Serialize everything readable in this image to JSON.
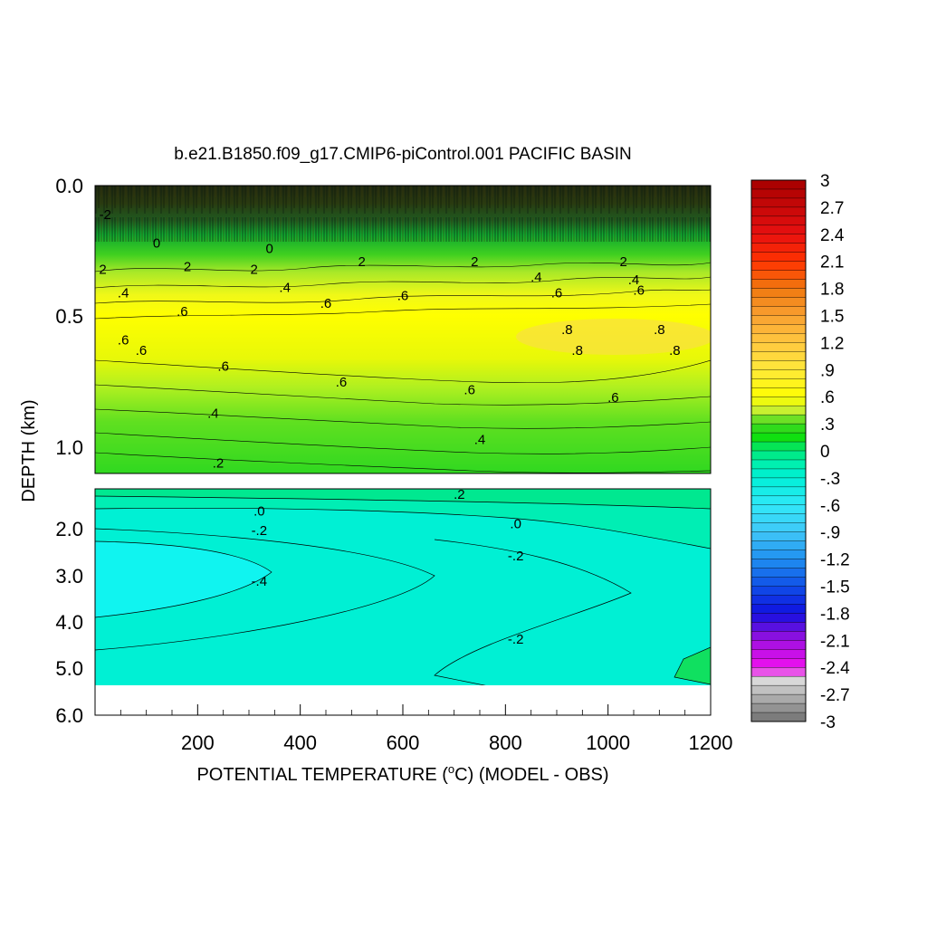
{
  "chart_data": {
    "type": "heatmap",
    "subtype": "filled-contour",
    "title": "b.e21.B1850.f09_g17.CMIP6-piControl.001 PACIFIC BASIN",
    "xlabel": "POTENTIAL TEMPERATURE (",
    "xlabel_sup": "o",
    "xlabel_tail": "C) (MODEL - OBS)",
    "ylabel": "DEPTH (km)",
    "x_ticks": [
      "200",
      "400",
      "600",
      "800",
      "1000",
      "1200"
    ],
    "xlim": [
      0,
      1200
    ],
    "upper_panel": {
      "ylim": [
        0.0,
        1.1
      ],
      "y_ticks": [
        "0.0",
        "0.5",
        "1.0"
      ],
      "contour_labels": [
        {
          "text": "-2",
          "x": 20,
          "y": 0.11
        },
        {
          "text": "0",
          "x": 120,
          "y": 0.22
        },
        {
          "text": "0",
          "x": 340,
          "y": 0.24
        },
        {
          "text": "2",
          "x": 15,
          "y": 0.32
        },
        {
          "text": "2",
          "x": 180,
          "y": 0.31
        },
        {
          "text": "2",
          "x": 310,
          "y": 0.32
        },
        {
          "text": "2",
          "x": 520,
          "y": 0.29
        },
        {
          "text": "2",
          "x": 740,
          "y": 0.29
        },
        {
          "text": "2",
          "x": 1030,
          "y": 0.29
        },
        {
          "text": ".4",
          "x": 55,
          "y": 0.41
        },
        {
          "text": ".4",
          "x": 370,
          "y": 0.39
        },
        {
          "text": ".4",
          "x": 860,
          "y": 0.35
        },
        {
          "text": ".4",
          "x": 1050,
          "y": 0.36
        },
        {
          "text": ".6",
          "x": 170,
          "y": 0.48
        },
        {
          "text": ".6",
          "x": 450,
          "y": 0.45
        },
        {
          "text": ".6",
          "x": 600,
          "y": 0.42
        },
        {
          "text": ".6",
          "x": 900,
          "y": 0.41
        },
        {
          "text": ".6",
          "x": 1060,
          "y": 0.4
        },
        {
          "text": ".6",
          "x": 55,
          "y": 0.59
        },
        {
          "text": ".6",
          "x": 90,
          "y": 0.63
        },
        {
          "text": ".8",
          "x": 920,
          "y": 0.55
        },
        {
          "text": ".8",
          "x": 1100,
          "y": 0.55
        },
        {
          "text": ".8",
          "x": 940,
          "y": 0.63
        },
        {
          "text": ".8",
          "x": 1130,
          "y": 0.63
        },
        {
          "text": ".6",
          "x": 250,
          "y": 0.69
        },
        {
          "text": ".6",
          "x": 480,
          "y": 0.75
        },
        {
          "text": ".6",
          "x": 730,
          "y": 0.78
        },
        {
          "text": ".6",
          "x": 1010,
          "y": 0.81
        },
        {
          "text": ".4",
          "x": 230,
          "y": 0.87
        },
        {
          "text": ".4",
          "x": 750,
          "y": 0.97
        },
        {
          "text": ".2",
          "x": 240,
          "y": 1.06
        }
      ]
    },
    "lower_panel": {
      "ylim": [
        1.1,
        6.0
      ],
      "data_bottom": 5.4,
      "y_ticks": [
        "2.0",
        "3.0",
        "4.0",
        "5.0",
        "6.0"
      ],
      "contour_labels": [
        {
          "text": ".0",
          "x": 320,
          "y": 1.58
        },
        {
          "text": ".2",
          "x": 710,
          "y": 1.22
        },
        {
          "text": ".0",
          "x": 820,
          "y": 1.85
        },
        {
          "text": "-.2",
          "x": 320,
          "y": 2.0
        },
        {
          "text": "-.2",
          "x": 820,
          "y": 2.55
        },
        {
          "text": "-.4",
          "x": 320,
          "y": 3.1
        },
        {
          "text": "-.2",
          "x": 820,
          "y": 4.35
        }
      ]
    },
    "colorbar": {
      "min": -3,
      "max": 3,
      "labels": [
        "3",
        "2.7",
        "2.4",
        "2.1",
        "1.8",
        "1.5",
        "1.2",
        ".9",
        ".6",
        ".3",
        "0",
        "-.3",
        "-.6",
        "-.9",
        "-1.2",
        "-1.5",
        "-1.8",
        "-2.1",
        "-2.4",
        "-2.7",
        "-3"
      ],
      "stops": [
        {
          "v": 3.0,
          "c": "#a50000"
        },
        {
          "v": 2.4,
          "c": "#e81010"
        },
        {
          "v": 2.1,
          "c": "#ff3300"
        },
        {
          "v": 1.8,
          "c": "#f07810"
        },
        {
          "v": 1.5,
          "c": "#f8a030"
        },
        {
          "v": 1.2,
          "c": "#ffc840"
        },
        {
          "v": 0.9,
          "c": "#ffe83a"
        },
        {
          "v": 0.6,
          "c": "#ffff00"
        },
        {
          "v": 0.45,
          "c": "#c8f030"
        },
        {
          "v": 0.3,
          "c": "#40d820"
        },
        {
          "v": 0.15,
          "c": "#10e010"
        },
        {
          "v": 0.0,
          "c": "#00e878"
        },
        {
          "v": -0.15,
          "c": "#00f0b0"
        },
        {
          "v": -0.3,
          "c": "#00f0d8"
        },
        {
          "v": -0.6,
          "c": "#30e8f8"
        },
        {
          "v": -0.9,
          "c": "#40c8f8"
        },
        {
          "v": -1.2,
          "c": "#2090f0"
        },
        {
          "v": -1.5,
          "c": "#1050e8"
        },
        {
          "v": -1.8,
          "c": "#1010e0"
        },
        {
          "v": -2.1,
          "c": "#a010e0"
        },
        {
          "v": -2.4,
          "c": "#f010f0"
        },
        {
          "v": -2.55,
          "c": "#d8d8d8"
        },
        {
          "v": -3.0,
          "c": "#707070"
        }
      ]
    }
  }
}
